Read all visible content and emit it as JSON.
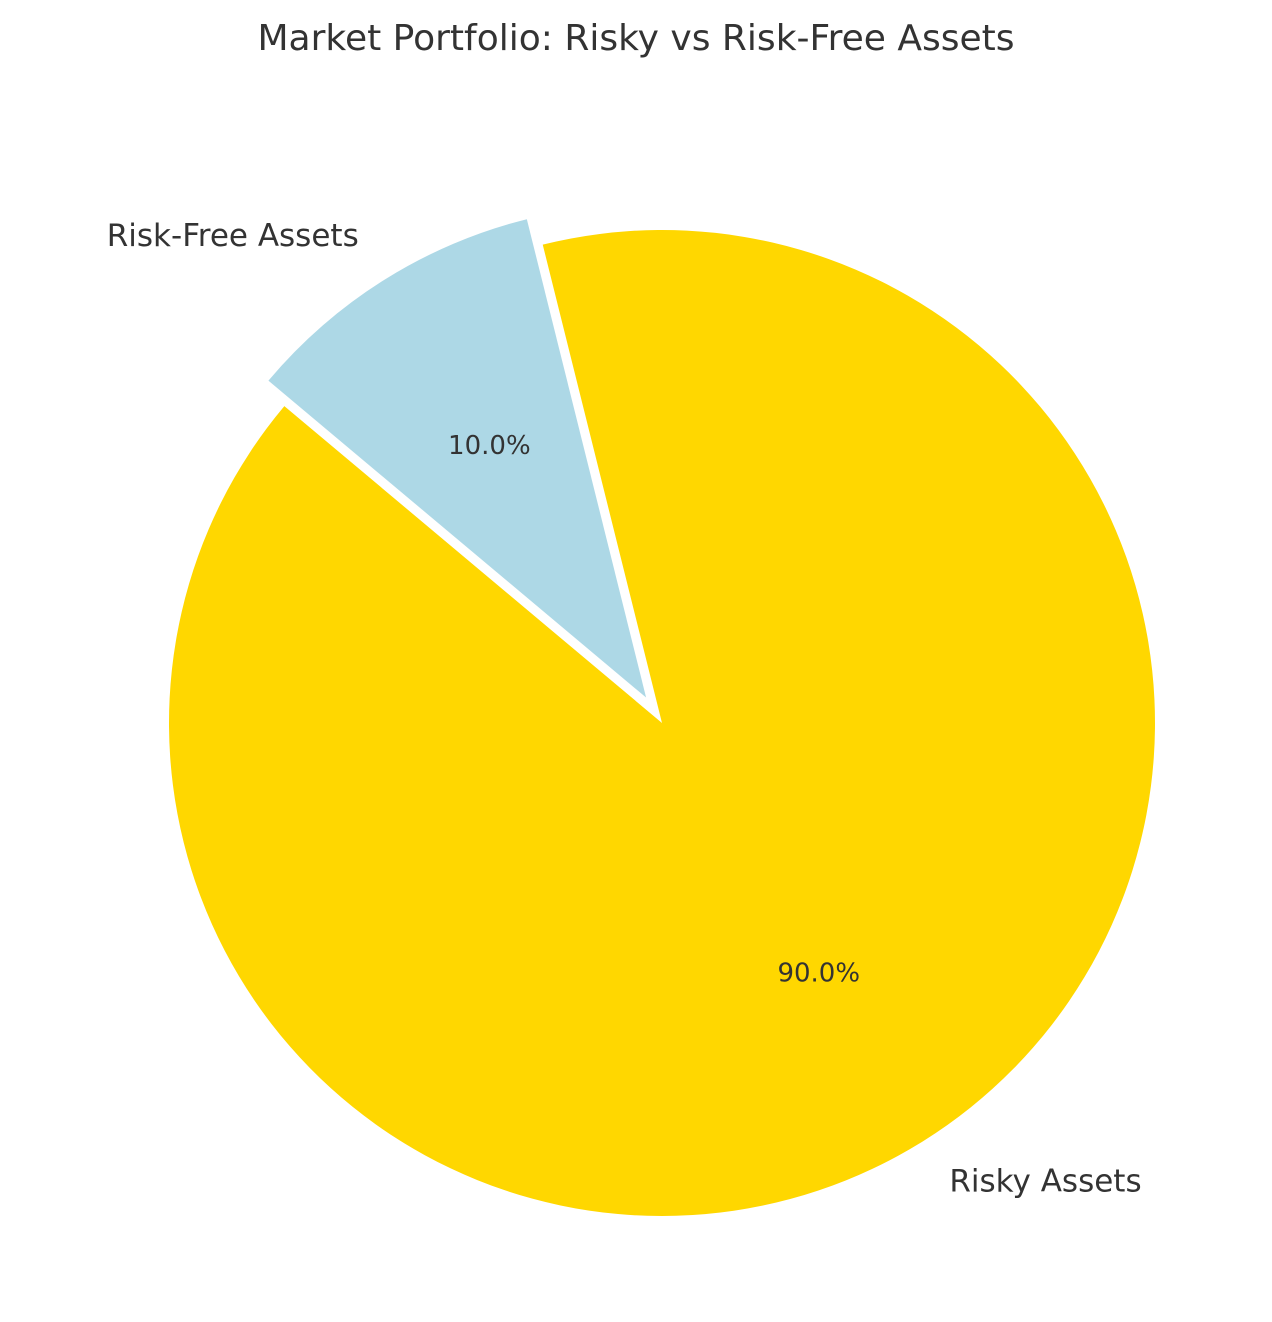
{
  "chart_data": {
    "type": "pie",
    "title": "Market Portfolio: Risky vs Risk-Free Assets",
    "slices": [
      {
        "label": "Risky Assets",
        "value": 90.0,
        "pct_label": "90.0%",
        "color": "#FFD700",
        "exploded": false
      },
      {
        "label": "Risk-Free Assets",
        "value": 10.0,
        "pct_label": "10.0%",
        "color": "#ADD8E6",
        "exploded": true
      }
    ],
    "start_angle_deg": 140,
    "legend": "none"
  }
}
